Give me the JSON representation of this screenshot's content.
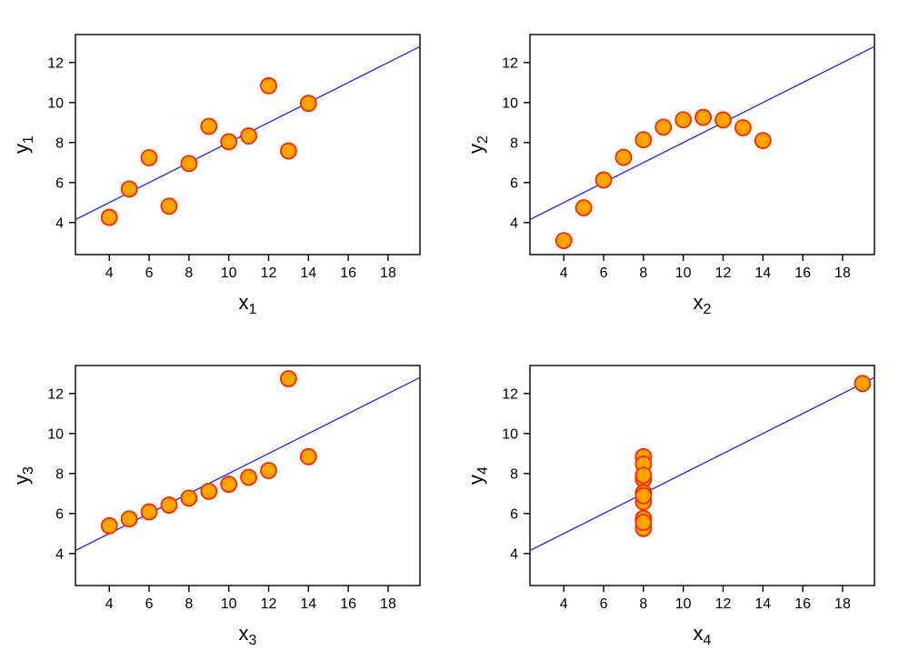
{
  "figure": {
    "description": "Anscombe quartet: four scatter plots with identical linear fits",
    "background": "#ffffff"
  },
  "style": {
    "point_fill": "#FFA500",
    "point_stroke": "#FF2200",
    "line_color": "#2222FF",
    "frame_color": "#000000",
    "text_color": "#000000"
  },
  "chart_data": [
    {
      "type": "scatter",
      "xlabel_base": "x",
      "xlabel_sub": "1",
      "ylabel_base": "y",
      "ylabel_sub": "1",
      "x": [
        10,
        8,
        13,
        9,
        11,
        14,
        6,
        4,
        12,
        7,
        5
      ],
      "y": [
        8.04,
        6.95,
        7.58,
        8.81,
        8.33,
        9.96,
        7.24,
        4.26,
        10.84,
        4.82,
        5.68
      ],
      "fit_line": {
        "slope": 0.5,
        "intercept": 3.0
      },
      "xlim": [
        2.3,
        19.6
      ],
      "ylim": [
        2.4,
        13.4
      ],
      "xticks": [
        4,
        6,
        8,
        10,
        12,
        14,
        16,
        18
      ],
      "yticks": [
        4,
        6,
        8,
        10,
        12
      ],
      "grid": false,
      "legend": null
    },
    {
      "type": "scatter",
      "xlabel_base": "x",
      "xlabel_sub": "2",
      "ylabel_base": "y",
      "ylabel_sub": "2",
      "x": [
        10,
        8,
        13,
        9,
        11,
        14,
        6,
        4,
        12,
        7,
        5
      ],
      "y": [
        9.14,
        8.14,
        8.74,
        8.77,
        9.26,
        8.1,
        6.13,
        3.1,
        9.13,
        7.26,
        4.74
      ],
      "fit_line": {
        "slope": 0.5,
        "intercept": 3.0
      },
      "xlim": [
        2.3,
        19.6
      ],
      "ylim": [
        2.4,
        13.4
      ],
      "xticks": [
        4,
        6,
        8,
        10,
        12,
        14,
        16,
        18
      ],
      "yticks": [
        4,
        6,
        8,
        10,
        12
      ],
      "grid": false,
      "legend": null
    },
    {
      "type": "scatter",
      "xlabel_base": "x",
      "xlabel_sub": "3",
      "ylabel_base": "y",
      "ylabel_sub": "3",
      "x": [
        10,
        8,
        13,
        9,
        11,
        14,
        6,
        4,
        12,
        7,
        5
      ],
      "y": [
        7.46,
        6.77,
        12.74,
        7.11,
        7.81,
        8.84,
        6.08,
        5.39,
        8.15,
        6.42,
        5.73
      ],
      "fit_line": {
        "slope": 0.5,
        "intercept": 3.0
      },
      "xlim": [
        2.3,
        19.6
      ],
      "ylim": [
        2.4,
        13.4
      ],
      "xticks": [
        4,
        6,
        8,
        10,
        12,
        14,
        16,
        18
      ],
      "yticks": [
        4,
        6,
        8,
        10,
        12
      ],
      "grid": false,
      "legend": null
    },
    {
      "type": "scatter",
      "xlabel_base": "x",
      "xlabel_sub": "4",
      "ylabel_base": "y",
      "ylabel_sub": "4",
      "x": [
        8,
        8,
        8,
        8,
        8,
        8,
        8,
        19,
        8,
        8,
        8
      ],
      "y": [
        6.58,
        5.76,
        7.71,
        8.84,
        8.47,
        7.04,
        5.25,
        12.5,
        5.56,
        7.91,
        6.89
      ],
      "fit_line": {
        "slope": 0.5,
        "intercept": 3.0
      },
      "xlim": [
        2.3,
        19.6
      ],
      "ylim": [
        2.4,
        13.4
      ],
      "xticks": [
        4,
        6,
        8,
        10,
        12,
        14,
        16,
        18
      ],
      "yticks": [
        4,
        6,
        8,
        10,
        12
      ],
      "grid": false,
      "legend": null
    }
  ]
}
